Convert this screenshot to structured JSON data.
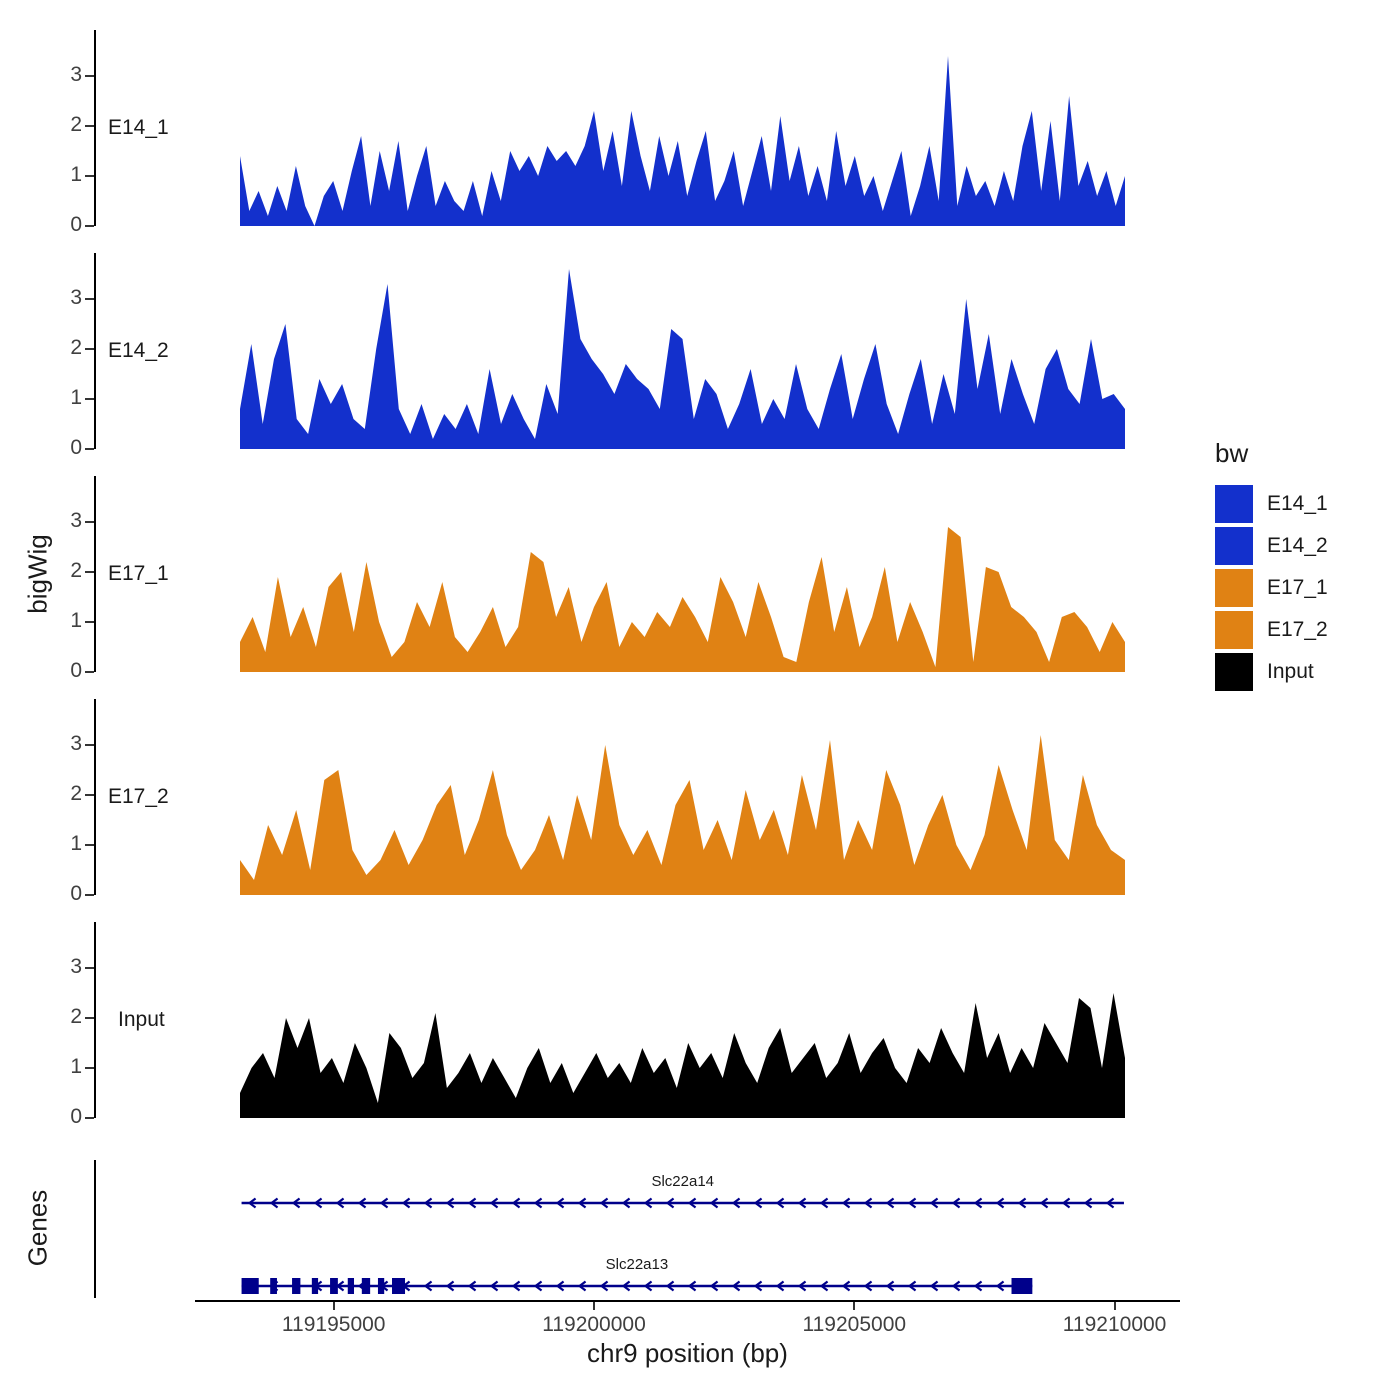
{
  "chart_data": {
    "type": "area",
    "title": "",
    "xlabel": "chr9 position (bp)",
    "ylabel": "bigWig",
    "x_start": 119193200,
    "x_end": 119210200,
    "ylim": [
      0,
      3.9
    ],
    "y_ticks": [
      0,
      1,
      2,
      3
    ],
    "x_ticks": [
      {
        "value": 119195000,
        "label": "119195000"
      },
      {
        "value": 119200000,
        "label": "119200000"
      },
      {
        "value": 119205000,
        "label": "119205000"
      },
      {
        "value": 119210000,
        "label": "119210000"
      }
    ],
    "tracks": [
      {
        "name": "E14_1",
        "color": "#1330cc",
        "values": [
          1.4,
          0.3,
          0.7,
          0.2,
          0.8,
          0.3,
          1.2,
          0.4,
          0.0,
          0.6,
          0.9,
          0.3,
          1.1,
          1.8,
          0.4,
          1.5,
          0.7,
          1.7,
          0.3,
          1.0,
          1.6,
          0.4,
          0.9,
          0.5,
          0.3,
          0.9,
          0.2,
          1.1,
          0.5,
          1.5,
          1.1,
          1.4,
          1.0,
          1.6,
          1.3,
          1.5,
          1.2,
          1.6,
          2.3,
          1.1,
          1.9,
          0.8,
          2.3,
          1.4,
          0.7,
          1.8,
          1.0,
          1.7,
          0.6,
          1.3,
          1.9,
          0.5,
          0.9,
          1.5,
          0.4,
          1.1,
          1.8,
          0.7,
          2.2,
          0.9,
          1.6,
          0.6,
          1.2,
          0.5,
          1.9,
          0.8,
          1.4,
          0.6,
          1.0,
          0.3,
          0.9,
          1.5,
          0.2,
          0.8,
          1.6,
          0.5,
          3.4,
          0.4,
          1.2,
          0.6,
          0.9,
          0.4,
          1.1,
          0.5,
          1.6,
          2.3,
          0.7,
          2.1,
          0.5,
          2.6,
          0.8,
          1.3,
          0.6,
          1.1,
          0.4,
          1.0
        ]
      },
      {
        "name": "E14_2",
        "color": "#1330cc",
        "values": [
          0.8,
          2.1,
          0.5,
          1.8,
          2.5,
          0.6,
          0.3,
          1.4,
          0.9,
          1.3,
          0.6,
          0.4,
          2.0,
          3.3,
          0.8,
          0.3,
          0.9,
          0.2,
          0.7,
          0.4,
          0.9,
          0.3,
          1.6,
          0.5,
          1.1,
          0.6,
          0.2,
          1.3,
          0.7,
          3.6,
          2.2,
          1.8,
          1.5,
          1.1,
          1.7,
          1.4,
          1.2,
          0.8,
          2.4,
          2.2,
          0.6,
          1.4,
          1.1,
          0.4,
          0.9,
          1.6,
          0.5,
          1.0,
          0.6,
          1.7,
          0.8,
          0.4,
          1.2,
          1.9,
          0.6,
          1.4,
          2.1,
          0.9,
          0.3,
          1.1,
          1.8,
          0.5,
          1.5,
          0.7,
          3.0,
          1.2,
          2.3,
          0.7,
          1.8,
          1.1,
          0.5,
          1.6,
          2.0,
          1.2,
          0.9,
          2.2,
          1.0,
          1.1,
          0.8
        ]
      },
      {
        "name": "E17_1",
        "color": "#e08214",
        "values": [
          0.6,
          1.1,
          0.4,
          1.9,
          0.7,
          1.3,
          0.5,
          1.7,
          2.0,
          0.8,
          2.2,
          1.0,
          0.3,
          0.6,
          1.4,
          0.9,
          1.8,
          0.7,
          0.4,
          0.8,
          1.3,
          0.5,
          0.9,
          2.4,
          2.2,
          1.1,
          1.7,
          0.6,
          1.3,
          1.8,
          0.5,
          1.0,
          0.7,
          1.2,
          0.9,
          1.5,
          1.1,
          0.6,
          1.9,
          1.4,
          0.7,
          1.8,
          1.1,
          0.3,
          0.2,
          1.4,
          2.3,
          0.8,
          1.7,
          0.5,
          1.1,
          2.1,
          0.6,
          1.4,
          0.8,
          0.1,
          2.9,
          2.7,
          0.2,
          2.1,
          2.0,
          1.3,
          1.1,
          0.8,
          0.2,
          1.1,
          1.2,
          0.9,
          0.4,
          1.0,
          0.6
        ]
      },
      {
        "name": "E17_2",
        "color": "#e08214",
        "values": [
          0.7,
          0.3,
          1.4,
          0.8,
          1.7,
          0.5,
          2.3,
          2.5,
          0.9,
          0.4,
          0.7,
          1.3,
          0.6,
          1.1,
          1.8,
          2.2,
          0.8,
          1.5,
          2.5,
          1.2,
          0.5,
          0.9,
          1.6,
          0.7,
          2.0,
          1.1,
          3.0,
          1.4,
          0.8,
          1.3,
          0.6,
          1.8,
          2.3,
          0.9,
          1.5,
          0.7,
          2.1,
          1.1,
          1.7,
          0.8,
          2.4,
          1.3,
          3.1,
          0.7,
          1.5,
          0.9,
          2.5,
          1.8,
          0.6,
          1.4,
          2.0,
          1.0,
          0.5,
          1.2,
          2.6,
          1.7,
          0.9,
          3.2,
          1.1,
          0.7,
          2.4,
          1.4,
          0.9,
          0.7
        ]
      },
      {
        "name": "Input",
        "color": "#000000",
        "values": [
          0.5,
          1.0,
          1.3,
          0.8,
          2.0,
          1.4,
          2.0,
          0.9,
          1.2,
          0.7,
          1.5,
          1.0,
          0.3,
          1.7,
          1.4,
          0.8,
          1.1,
          2.1,
          0.6,
          0.9,
          1.3,
          0.7,
          1.2,
          0.8,
          0.4,
          1.0,
          1.4,
          0.7,
          1.1,
          0.5,
          0.9,
          1.3,
          0.8,
          1.1,
          0.7,
          1.4,
          0.9,
          1.2,
          0.6,
          1.5,
          1.0,
          1.3,
          0.8,
          1.7,
          1.1,
          0.7,
          1.4,
          1.8,
          0.9,
          1.2,
          1.5,
          0.8,
          1.1,
          1.7,
          0.9,
          1.3,
          1.6,
          1.0,
          0.7,
          1.4,
          1.1,
          1.8,
          1.3,
          0.9,
          2.3,
          1.2,
          1.7,
          0.9,
          1.4,
          1.0,
          1.9,
          1.5,
          1.1,
          2.4,
          2.2,
          1.0,
          2.5,
          1.2
        ]
      }
    ],
    "genes": {
      "label": "Genes",
      "color": "#00008b",
      "items": [
        {
          "name": "Slc22a14",
          "strand": "-",
          "start": 119193230,
          "end": 119210180,
          "exons": []
        },
        {
          "name": "Slc22a13",
          "strand": "-",
          "start": 119193230,
          "end": 119208420,
          "exons": [
            [
              119193230,
              119193560
            ],
            [
              119193780,
              119193910
            ],
            [
              119194200,
              119194360
            ],
            [
              119194580,
              119194700
            ],
            [
              119194930,
              119195080
            ],
            [
              119195270,
              119195390
            ],
            [
              119195540,
              119195700
            ],
            [
              119195850,
              119195970
            ],
            [
              119196120,
              119196370
            ],
            [
              119208020,
              119208420
            ]
          ]
        }
      ]
    },
    "legend": {
      "title": "bw",
      "items": [
        {
          "label": "E14_1",
          "color": "#1330cc"
        },
        {
          "label": "E14_2",
          "color": "#1330cc"
        },
        {
          "label": "E17_1",
          "color": "#e08214"
        },
        {
          "label": "E17_2",
          "color": "#e08214"
        },
        {
          "label": "Input",
          "color": "#000000"
        }
      ]
    }
  }
}
